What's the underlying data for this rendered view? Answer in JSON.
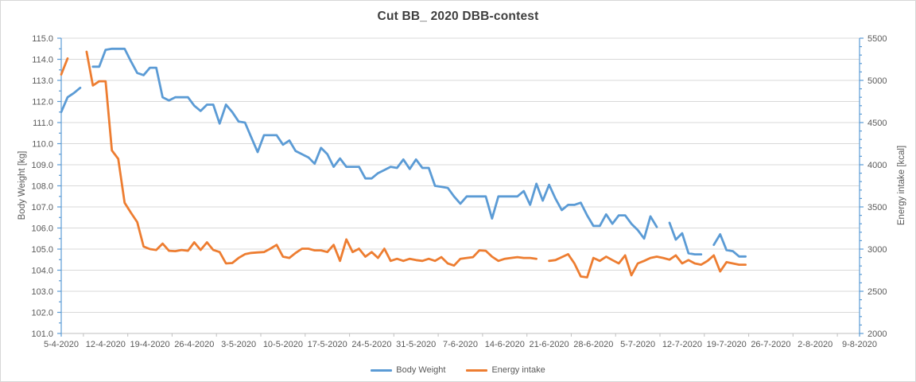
{
  "chart": {
    "title": "Cut BB_ 2020 DBB-contest",
    "left_axis_title": "Body Weight [kg]",
    "right_axis_title": "Energy intake [kcal]",
    "legend": [
      {
        "label": "Body Weight",
        "color": "#5B9BD5"
      },
      {
        "label": "Energy intake",
        "color": "#ED7D31"
      }
    ]
  },
  "chart_data": {
    "type": "line",
    "title": "Cut BB_ 2020 DBB-contest",
    "xlabel": "",
    "x_tick_labels": [
      "5-4-2020",
      "12-4-2020",
      "19-4-2020",
      "26-4-2020",
      "3-5-2020",
      "10-5-2020",
      "17-5-2020",
      "24-5-2020",
      "31-5-2020",
      "7-6-2020",
      "14-6-2020",
      "21-6-2020",
      "28-6-2020",
      "5-7-2020",
      "12-7-2020",
      "19-7-2020",
      "26-7-2020",
      "2-8-2020",
      "9-8-2020"
    ],
    "days_per_tick": 7,
    "x_total_days": 126,
    "grid": "horizontal",
    "legend_position": "bottom",
    "left_axis": {
      "label": "Body Weight [kg]",
      "min": 101,
      "max": 115,
      "major_step": 1,
      "minor_step": 0.5,
      "decimals": 1
    },
    "right_axis": {
      "label": "Energy intake [kcal]",
      "min": 2000,
      "max": 5500,
      "major_step": 500,
      "minor_step": 100,
      "decimals": 0
    },
    "series": [
      {
        "name": "Body Weight",
        "axis": "left",
        "color": "#5B9BD5",
        "start_date": "5-4-2020",
        "values": [
          111.5,
          112.2,
          112.4,
          112.65,
          null,
          113.65,
          113.65,
          114.45,
          114.5,
          114.5,
          114.5,
          113.9,
          113.35,
          113.25,
          113.6,
          113.6,
          112.2,
          112.05,
          112.2,
          112.2,
          112.2,
          111.8,
          111.55,
          111.85,
          111.85,
          110.95,
          111.85,
          111.5,
          111.05,
          111.0,
          110.3,
          109.6,
          110.4,
          110.4,
          110.4,
          109.95,
          110.15,
          109.65,
          109.5,
          109.35,
          109.05,
          109.8,
          109.5,
          108.9,
          109.3,
          108.9,
          108.9,
          108.9,
          108.35,
          108.35,
          108.6,
          108.75,
          108.9,
          108.85,
          109.25,
          108.8,
          109.25,
          108.85,
          108.85,
          108.0,
          107.95,
          107.9,
          107.5,
          107.15,
          107.5,
          107.5,
          107.5,
          107.5,
          106.45,
          107.5,
          107.5,
          107.5,
          107.5,
          107.75,
          107.1,
          108.1,
          107.3,
          108.05,
          107.4,
          106.85,
          107.1,
          107.1,
          107.2,
          106.6,
          106.1,
          106.1,
          106.65,
          106.2,
          106.6,
          106.6,
          106.2,
          105.9,
          105.5,
          106.55,
          106.05,
          null,
          106.25,
          105.45,
          105.75,
          104.8,
          104.75,
          104.75,
          null,
          105.2,
          105.7,
          104.95,
          104.9,
          104.65,
          104.65
        ]
      },
      {
        "name": "Energy intake",
        "axis": "right",
        "color": "#ED7D31",
        "start_date": "5-4-2020",
        "values": [
          5070,
          5260,
          null,
          null,
          5340,
          4940,
          4990,
          4990,
          4170,
          4070,
          3550,
          3430,
          3320,
          3030,
          3000,
          2990,
          3065,
          2980,
          2975,
          2990,
          2980,
          3080,
          2990,
          3080,
          2990,
          2965,
          2830,
          2835,
          2895,
          2940,
          2955,
          2960,
          2965,
          3005,
          3050,
          2910,
          2895,
          2955,
          3005,
          3005,
          2985,
          2985,
          2965,
          3050,
          2860,
          3115,
          2965,
          3005,
          2910,
          2965,
          2895,
          3005,
          2860,
          2885,
          2860,
          2885,
          2870,
          2860,
          2885,
          2860,
          2905,
          2830,
          2805,
          2885,
          2895,
          2905,
          2985,
          2980,
          2910,
          2860,
          2885,
          2895,
          2905,
          2895,
          2895,
          2885,
          null,
          2860,
          2870,
          2905,
          2940,
          2830,
          2675,
          2665,
          2895,
          2860,
          2910,
          2870,
          2830,
          2925,
          2690,
          2830,
          2860,
          2895,
          2910,
          2895,
          2875,
          2925,
          2830,
          2870,
          2830,
          2815,
          2860,
          2925,
          2735,
          2845,
          2830,
          2815,
          2815
        ]
      }
    ],
    "colors": {
      "gridline": "#D9D9D9",
      "vertical_axis_line": "#5B9BD5",
      "bottom_axis_line": "#BFBFBF",
      "tick_label": "#595959",
      "title": "#3F3F3F"
    }
  }
}
